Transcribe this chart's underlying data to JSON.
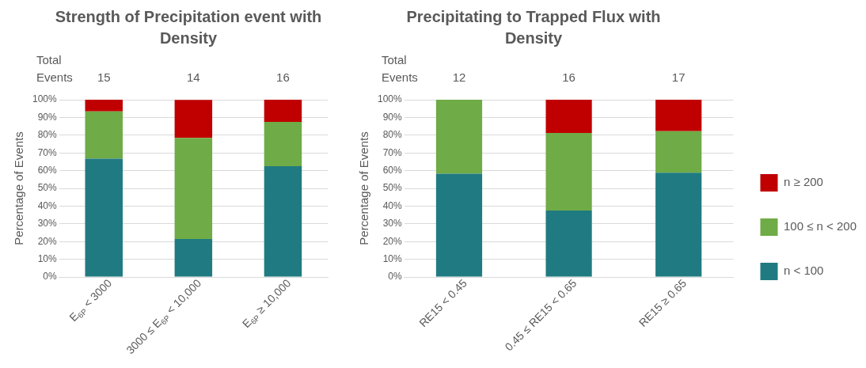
{
  "chart_data": [
    {
      "type": "bar",
      "title": "Strength of Precipitation event with Density",
      "ylabel": "Percentage of Events",
      "categories": [
        "E$_{6P}$ < 3000",
        "3000 ≤ E$_{6P}$ < 10,000",
        "E$_{6P}$ ≥ 10,000"
      ],
      "stacked": true,
      "ylim": [
        0,
        100
      ],
      "yticks": [
        {
          "value": 0,
          "label": "0%"
        },
        {
          "value": 10,
          "label": "10%"
        },
        {
          "value": 20,
          "label": "20%"
        },
        {
          "value": 30,
          "label": "30%"
        },
        {
          "value": 40,
          "label": "40%"
        },
        {
          "value": 50,
          "label": "50%"
        },
        {
          "value": 60,
          "label": "60%"
        },
        {
          "value": 70,
          "label": "70%"
        },
        {
          "value": 80,
          "label": "80%"
        },
        {
          "value": 90,
          "label": "90%"
        },
        {
          "value": 100,
          "label": "100%"
        }
      ],
      "grid": "y",
      "legend": false,
      "series": [
        {
          "color": "#1f7b81",
          "values": [
            66.7,
            21.4,
            62.5
          ]
        },
        {
          "color": "#6fab46",
          "values": [
            26.7,
            57.1,
            25.0
          ]
        },
        {
          "color": "#c00000",
          "values": [
            6.7,
            21.4,
            12.5
          ]
        }
      ],
      "annotations": [
        "Total Events",
        "15",
        "14",
        "16"
      ]
    },
    {
      "type": "bar",
      "title": "Precipitating to Trapped Flux with Density",
      "ylabel": "Percentage of Events",
      "categories": [
        "RE15 < 0.45",
        "0.45 ≤ RE15 < 0.65",
        "RE15 ≥ 0.65"
      ],
      "stacked": true,
      "ylim": [
        0,
        100
      ],
      "yticks": [
        {
          "value": 0,
          "label": "0%"
        },
        {
          "value": 10,
          "label": "10%"
        },
        {
          "value": 20,
          "label": "20%"
        },
        {
          "value": 30,
          "label": "30%"
        },
        {
          "value": 40,
          "label": "40%"
        },
        {
          "value": 50,
          "label": "50%"
        },
        {
          "value": 60,
          "label": "60%"
        },
        {
          "value": 70,
          "label": "70%"
        },
        {
          "value": 80,
          "label": "80%"
        },
        {
          "value": 90,
          "label": "90%"
        },
        {
          "value": 100,
          "label": "100%"
        }
      ],
      "grid": "y",
      "legend": "right",
      "series": [
        {
          "name": "n < 100",
          "color": "#1f7b81",
          "values": [
            58.3,
            37.5,
            58.8
          ]
        },
        {
          "name": "100 ≤ n < 200",
          "color": "#6fab46",
          "values": [
            41.7,
            43.8,
            23.5
          ]
        },
        {
          "name": "n ≥ 200",
          "color": "#c00000",
          "values": [
            0,
            18.7,
            17.7
          ]
        }
      ],
      "annotations": [
        "Total Events",
        "12",
        "16",
        "17"
      ]
    }
  ]
}
